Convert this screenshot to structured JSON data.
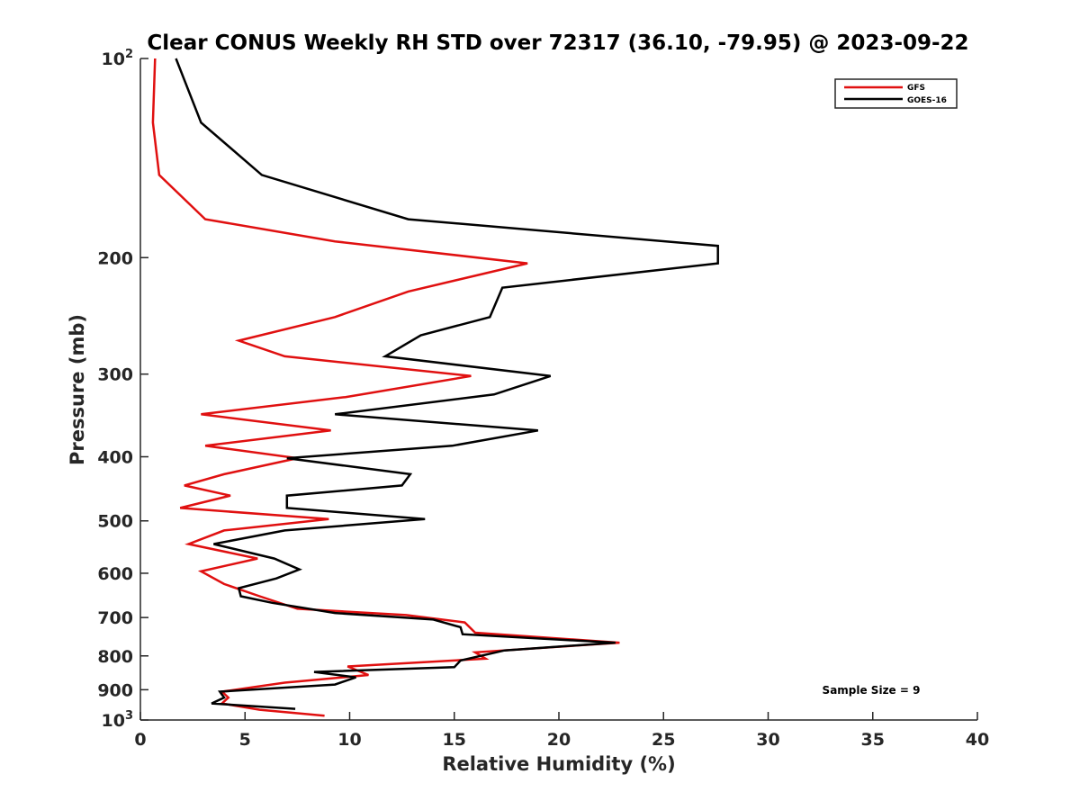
{
  "chart_data": {
    "type": "line",
    "title": "Clear CONUS Weekly RH STD over 72317 (36.10, -79.95) @ 2023-09-22",
    "xlabel": "Relative Humidity (%)",
    "ylabel": "Pressure (mb)",
    "xlim": [
      0,
      40
    ],
    "ylim": [
      100,
      1000
    ],
    "yscale": "log",
    "y_reversed": true,
    "grid": false,
    "legend_placement": "top-right",
    "x_ticks": [
      0,
      5,
      10,
      15,
      20,
      25,
      30,
      35,
      40
    ],
    "y_ticks": [
      {
        "value": 100,
        "base": "10",
        "exp": "2"
      },
      {
        "value": 200,
        "label": "200"
      },
      {
        "value": 300,
        "label": "300"
      },
      {
        "value": 400,
        "label": "400"
      },
      {
        "value": 500,
        "label": "500"
      },
      {
        "value": 600,
        "label": "600"
      },
      {
        "value": 700,
        "label": "700"
      },
      {
        "value": 800,
        "label": "800"
      },
      {
        "value": 900,
        "label": "900"
      },
      {
        "value": 1000,
        "base": "10",
        "exp": "3"
      }
    ],
    "annotation": "Sample Size = 9",
    "series": [
      {
        "name": "GFS",
        "color": "#e01010",
        "points": [
          [
            0.7,
            100
          ],
          [
            0.6,
            125
          ],
          [
            0.9,
            150
          ],
          [
            3.1,
            175
          ],
          [
            9.3,
            189
          ],
          [
            18.5,
            204
          ],
          [
            12.8,
            225
          ],
          [
            9.3,
            246
          ],
          [
            4.7,
            267
          ],
          [
            6.9,
            282
          ],
          [
            15.8,
            302
          ],
          [
            9.8,
            325
          ],
          [
            2.9,
            345
          ],
          [
            9.1,
            365
          ],
          [
            3.1,
            385
          ],
          [
            7.5,
            402
          ],
          [
            4.0,
            425
          ],
          [
            2.1,
            442
          ],
          [
            4.3,
            458
          ],
          [
            1.9,
            478
          ],
          [
            9.0,
            497
          ],
          [
            4.0,
            517
          ],
          [
            2.3,
            542
          ],
          [
            5.6,
            570
          ],
          [
            2.9,
            596
          ],
          [
            4.0,
            623
          ],
          [
            5.7,
            650
          ],
          [
            7.5,
            679
          ],
          [
            12.7,
            694
          ],
          [
            15.5,
            712
          ],
          [
            16.0,
            738
          ],
          [
            22.9,
            764
          ],
          [
            16.0,
            790
          ],
          [
            16.5,
            808
          ],
          [
            9.9,
            830
          ],
          [
            10.9,
            855
          ],
          [
            6.9,
            878
          ],
          [
            3.9,
            906
          ],
          [
            4.2,
            925
          ],
          [
            3.9,
            944
          ],
          [
            5.7,
            965
          ],
          [
            8.8,
            985
          ]
        ]
      },
      {
        "name": "GOES-16",
        "color": "#000000",
        "points": [
          [
            1.7,
            100
          ],
          [
            2.9,
            125
          ],
          [
            5.8,
            150
          ],
          [
            12.8,
            175
          ],
          [
            27.6,
            192
          ],
          [
            27.6,
            204
          ],
          [
            17.3,
            222
          ],
          [
            16.7,
            246
          ],
          [
            13.4,
            262
          ],
          [
            11.7,
            282
          ],
          [
            19.6,
            302
          ],
          [
            16.9,
            322
          ],
          [
            9.3,
            345
          ],
          [
            19.0,
            365
          ],
          [
            14.9,
            385
          ],
          [
            7.0,
            402
          ],
          [
            12.9,
            425
          ],
          [
            12.5,
            442
          ],
          [
            7.0,
            458
          ],
          [
            7.0,
            478
          ],
          [
            13.6,
            497
          ],
          [
            6.9,
            517
          ],
          [
            3.5,
            542
          ],
          [
            6.4,
            570
          ],
          [
            7.6,
            592
          ],
          [
            6.5,
            611
          ],
          [
            4.7,
            632
          ],
          [
            4.8,
            650
          ],
          [
            6.3,
            665
          ],
          [
            9.3,
            689
          ],
          [
            14.0,
            705
          ],
          [
            15.3,
            724
          ],
          [
            15.4,
            742
          ],
          [
            22.7,
            764
          ],
          [
            17.4,
            785
          ],
          [
            15.3,
            813
          ],
          [
            15.0,
            832
          ],
          [
            8.3,
            846
          ],
          [
            10.3,
            862
          ],
          [
            9.3,
            884
          ],
          [
            3.8,
            906
          ],
          [
            4.0,
            925
          ],
          [
            3.4,
            944
          ],
          [
            7.4,
            962
          ]
        ]
      }
    ]
  }
}
